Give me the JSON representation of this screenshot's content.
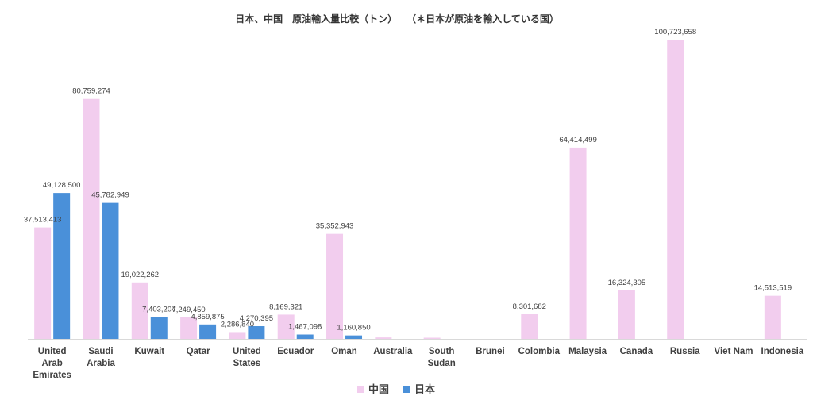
{
  "chart_data": {
    "type": "bar",
    "title": "日本、中国　原油輸入量比較（トン）　　（＊日本が原油を輸入している国）",
    "categories": [
      "United Arab Emirates",
      "Saudi Arabia",
      "Kuwait",
      "Qatar",
      "United States",
      "Ecuador",
      "Oman",
      "Australia",
      "South Sudan",
      "Brunei",
      "Colombia",
      "Malaysia",
      "Canada",
      "Russia",
      "Viet Nam",
      "Indonesia"
    ],
    "series": [
      {
        "name": "中国",
        "color": "#f2cdee",
        "values": [
          37513413,
          80759274,
          19022262,
          7249450,
          2286840,
          8169321,
          35352943,
          500000,
          400000,
          0,
          8301682,
          64414499,
          16324305,
          100723658,
          0,
          14513519
        ],
        "labels": [
          "37,513,413",
          "80,759,274",
          "19,022,262",
          "7,249,450",
          "2,286,840",
          "8,169,321",
          "35,352,943",
          "",
          "",
          "",
          "8,301,682",
          "64,414,499",
          "16,324,305",
          "100,723,658",
          "",
          "14,513,519"
        ]
      },
      {
        "name": "日本",
        "color": "#4a90d9",
        "values": [
          49128500,
          45782949,
          7403204,
          4859875,
          4270395,
          1467098,
          1160850,
          0,
          0,
          0,
          0,
          0,
          0,
          0,
          0,
          0
        ],
        "labels": [
          "49,128,500",
          "45,782,949",
          "7,403,204",
          "4,859,875",
          "4,270,395",
          "1,467,098",
          "1,160,850",
          "",
          "",
          "",
          "",
          "",
          "",
          "",
          "",
          ""
        ]
      }
    ],
    "ylim": [
      0,
      100723658
    ],
    "grid": false,
    "legend_position": "bottom"
  }
}
